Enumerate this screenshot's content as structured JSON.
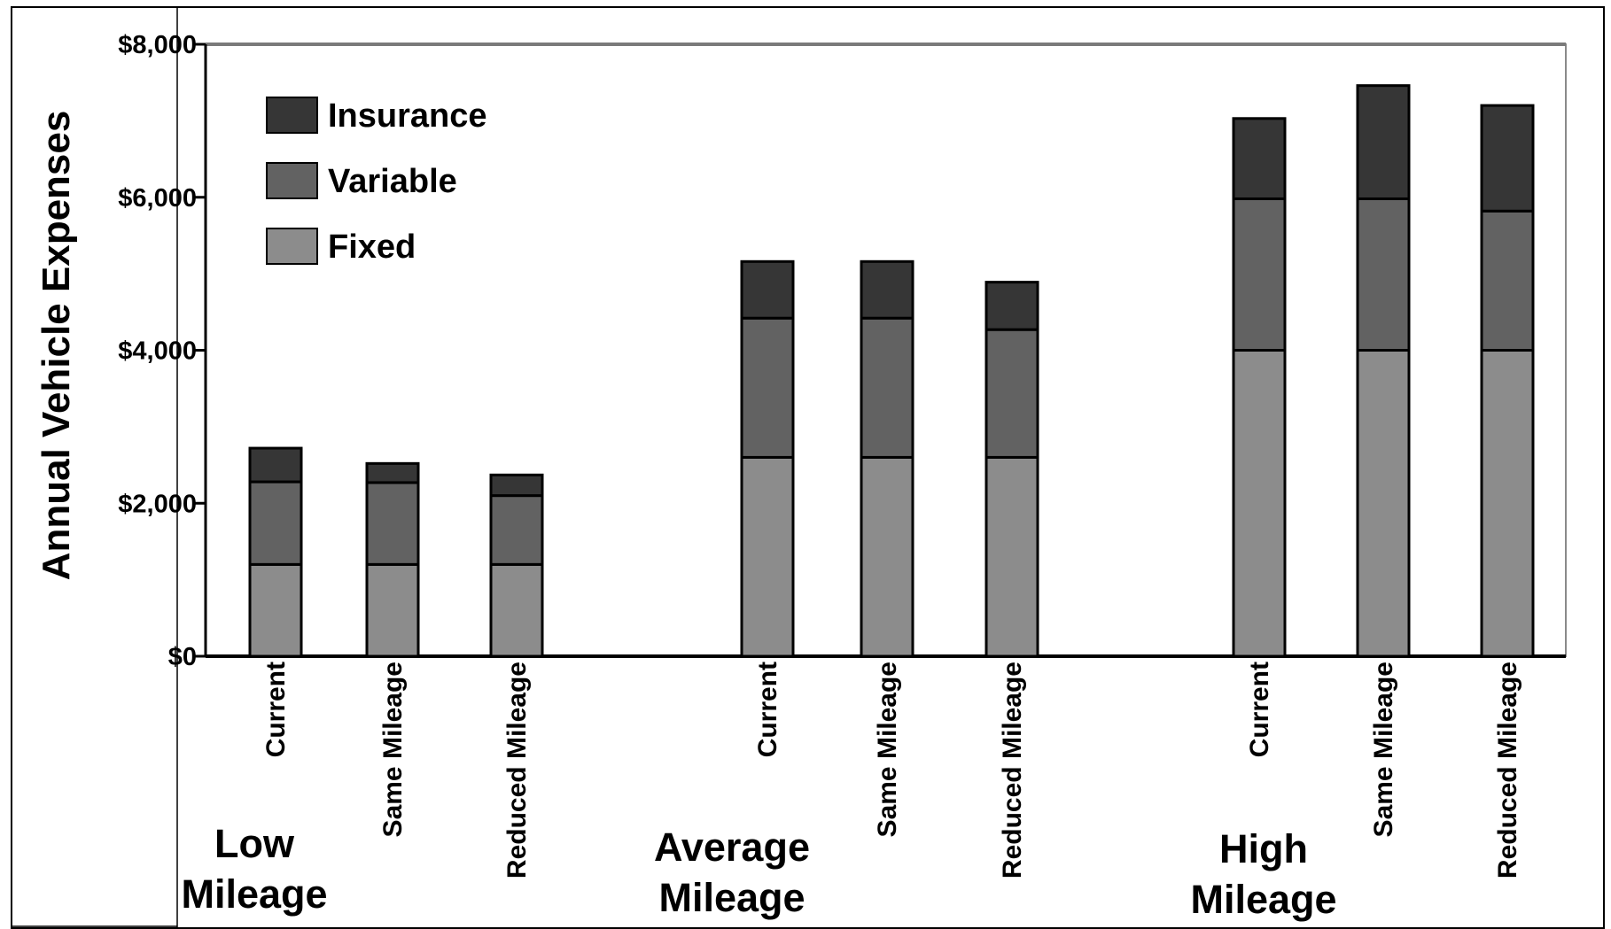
{
  "chart_data": {
    "type": "bar",
    "stacked": true,
    "ylabel": "Annual Vehicle Expenses",
    "ylim": [
      0,
      8000
    ],
    "yticks": [
      0,
      2000,
      4000,
      6000,
      8000
    ],
    "ytick_labels": [
      "$0",
      "$2,000",
      "$4,000",
      "$6,000",
      "$8,000"
    ],
    "groups": [
      {
        "label": [
          "Low",
          "Mileage"
        ],
        "categories": [
          "Current",
          "Same Mileage",
          "Reduced Mileage"
        ]
      },
      {
        "label": [
          "Average",
          "Mileage"
        ],
        "categories": [
          "Current",
          "Same Mileage",
          "Reduced Mileage"
        ]
      },
      {
        "label": [
          "High",
          "Mileage"
        ],
        "categories": [
          "Current",
          "Same Mileage",
          "Reduced Mileage"
        ]
      }
    ],
    "categories": [
      "Current",
      "Same Mileage",
      "Reduced Mileage",
      "Current",
      "Same Mileage",
      "Reduced Mileage",
      "Current",
      "Same Mileage",
      "Reduced Mileage"
    ],
    "series": [
      {
        "name": "Fixed",
        "color": "#8c8c8c",
        "values": [
          1200,
          1200,
          1200,
          2600,
          2600,
          2600,
          4000,
          4000,
          4000
        ]
      },
      {
        "name": "Variable",
        "color": "#626262",
        "values": [
          1080,
          1070,
          900,
          1820,
          1820,
          1670,
          1980,
          1980,
          1820
        ]
      },
      {
        "name": "Insurance",
        "color": "#363636",
        "values": [
          440,
          250,
          270,
          740,
          740,
          620,
          1050,
          1480,
          1380
        ]
      }
    ],
    "legend": {
      "placement": "top-left",
      "order": [
        "Insurance",
        "Variable",
        "Fixed"
      ]
    },
    "grid": false
  }
}
